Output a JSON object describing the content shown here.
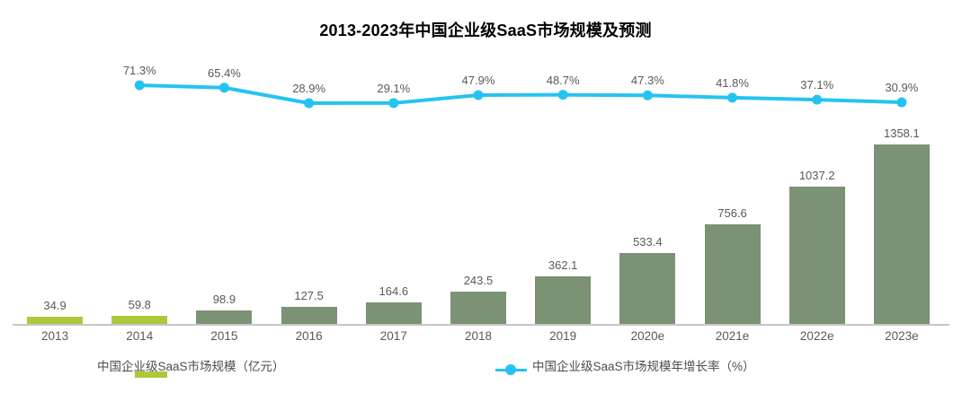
{
  "title": "2013-2023年中国企业级SaaS市场规模及预测",
  "legend": {
    "bar_label": "中国企业级SaaS市场规模（亿元）",
    "line_label": "中国企业级SaaS市场规模年增长率（%）"
  },
  "colors": {
    "bar_highlight": "#abc93a",
    "bar_normal": "#7b9274",
    "line": "#25c3f2",
    "label_text": "#595959",
    "axis_line": "#c6c6c6"
  },
  "chart_data": {
    "type": "bar",
    "combo": "bar+line",
    "title": "2013-2023年中国企业级SaaS市场规模及预测",
    "categories": [
      "2013",
      "2014",
      "2015",
      "2016",
      "2017",
      "2018",
      "2019",
      "2020e",
      "2021e",
      "2022e",
      "2023e"
    ],
    "series": [
      {
        "name": "中国企业级SaaS市场规模（亿元）",
        "type": "bar",
        "values": [
          34.9,
          59.8,
          98.9,
          127.5,
          164.6,
          243.5,
          362.1,
          533.4,
          756.6,
          1037.2,
          1358.1
        ],
        "highlighted_categories": [
          "2013",
          "2014"
        ]
      },
      {
        "name": "中国企业级SaaS市场规模年增长率（%）",
        "type": "line",
        "values": [
          null,
          71.3,
          65.4,
          28.9,
          29.1,
          47.9,
          48.7,
          47.3,
          41.8,
          37.1,
          30.9
        ],
        "unit": "%"
      }
    ],
    "xlabel": "",
    "ylabel": "",
    "grid": false,
    "legend_position": "bottom",
    "data_labels": true
  }
}
